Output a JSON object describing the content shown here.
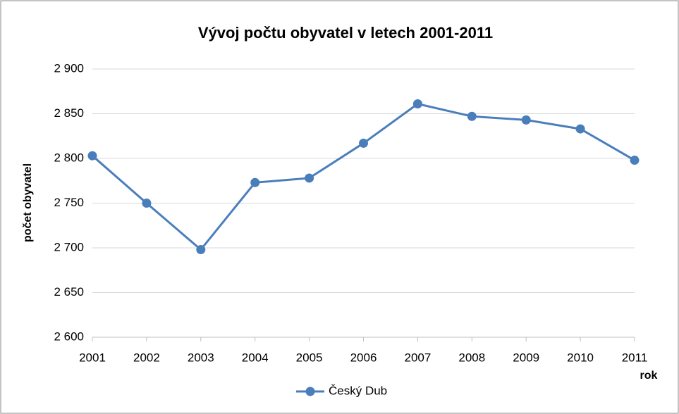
{
  "chart_data": {
    "type": "line",
    "title": "Vývoj počtu obyvatel v letech 2001-2011",
    "xlabel": "rok",
    "ylabel": "počet obyvatel",
    "x": [
      2001,
      2002,
      2003,
      2004,
      2005,
      2006,
      2007,
      2008,
      2009,
      2010,
      2011
    ],
    "series": [
      {
        "name": "Český Dub",
        "color": "#4a7ebb",
        "values": [
          2803,
          2750,
          2698,
          2773,
          2778,
          2817,
          2861,
          2847,
          2843,
          2833,
          2798
        ]
      }
    ],
    "xlim": [
      2001,
      2011
    ],
    "xticks": [
      2001,
      2002,
      2003,
      2004,
      2005,
      2006,
      2007,
      2008,
      2009,
      2010,
      2011
    ],
    "ylim": [
      2600,
      2900
    ],
    "yticks": [
      {
        "value": 2600,
        "label": "2 600"
      },
      {
        "value": 2650,
        "label": "2 650"
      },
      {
        "value": 2700,
        "label": "2 700"
      },
      {
        "value": 2750,
        "label": "2 750"
      },
      {
        "value": 2800,
        "label": "2 800"
      },
      {
        "value": 2850,
        "label": "2 850"
      },
      {
        "value": 2900,
        "label": "2 900"
      }
    ],
    "grid": true,
    "legend": "bottom"
  }
}
